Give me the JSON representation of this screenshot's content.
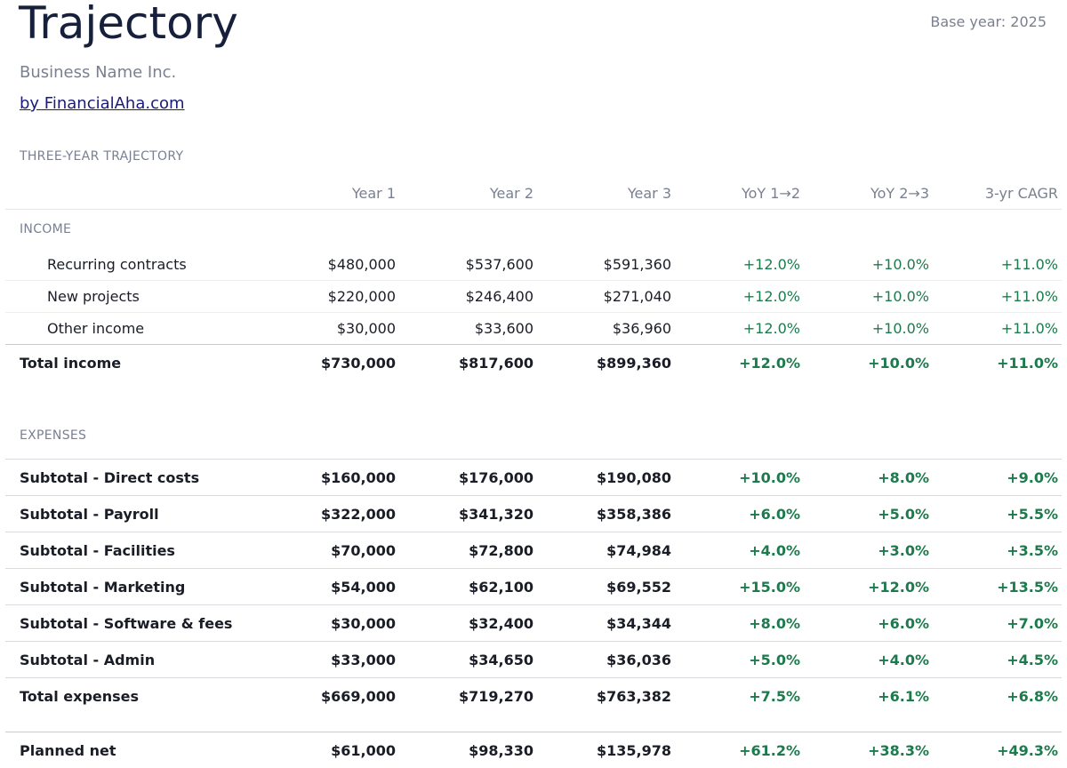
{
  "header": {
    "title": "Trajectory",
    "base_year": "Base year: 2025",
    "business": "Business Name Inc.",
    "by_link": "by FinancialAha.com"
  },
  "section_caption": "THREE-YEAR TRAJECTORY",
  "columns": [
    "",
    "Year 1",
    "Year 2",
    "Year 3",
    "YoY 1→2",
    "YoY 2→3",
    "3-yr CAGR"
  ],
  "income": {
    "group_label": "INCOME",
    "rows": [
      {
        "label": "Recurring contracts",
        "y1": "$480,000",
        "y2": "$537,600",
        "y3": "$591,360",
        "yoy12": "+12.0%",
        "yoy23": "+10.0%",
        "cagr": "+11.0%"
      },
      {
        "label": "New projects",
        "y1": "$220,000",
        "y2": "$246,400",
        "y3": "$271,040",
        "yoy12": "+12.0%",
        "yoy23": "+10.0%",
        "cagr": "+11.0%"
      },
      {
        "label": "Other income",
        "y1": "$30,000",
        "y2": "$33,600",
        "y3": "$36,960",
        "yoy12": "+12.0%",
        "yoy23": "+10.0%",
        "cagr": "+11.0%"
      }
    ],
    "total": {
      "label": "Total income",
      "y1": "$730,000",
      "y2": "$817,600",
      "y3": "$899,360",
      "yoy12": "+12.0%",
      "yoy23": "+10.0%",
      "cagr": "+11.0%"
    }
  },
  "expenses": {
    "group_label": "EXPENSES",
    "rows": [
      {
        "label": "Subtotal - Direct costs",
        "y1": "$160,000",
        "y2": "$176,000",
        "y3": "$190,080",
        "yoy12": "+10.0%",
        "yoy23": "+8.0%",
        "cagr": "+9.0%"
      },
      {
        "label": "Subtotal - Payroll",
        "y1": "$322,000",
        "y2": "$341,320",
        "y3": "$358,386",
        "yoy12": "+6.0%",
        "yoy23": "+5.0%",
        "cagr": "+5.5%"
      },
      {
        "label": "Subtotal - Facilities",
        "y1": "$70,000",
        "y2": "$72,800",
        "y3": "$74,984",
        "yoy12": "+4.0%",
        "yoy23": "+3.0%",
        "cagr": "+3.5%"
      },
      {
        "label": "Subtotal - Marketing",
        "y1": "$54,000",
        "y2": "$62,100",
        "y3": "$69,552",
        "yoy12": "+15.0%",
        "yoy23": "+12.0%",
        "cagr": "+13.5%"
      },
      {
        "label": "Subtotal - Software & fees",
        "y1": "$30,000",
        "y2": "$32,400",
        "y3": "$34,344",
        "yoy12": "+8.0%",
        "yoy23": "+6.0%",
        "cagr": "+7.0%"
      },
      {
        "label": "Subtotal - Admin",
        "y1": "$33,000",
        "y2": "$34,650",
        "y3": "$36,036",
        "yoy12": "+5.0%",
        "yoy23": "+4.0%",
        "cagr": "+4.5%"
      }
    ],
    "total": {
      "label": "Total expenses",
      "y1": "$669,000",
      "y2": "$719,270",
      "y3": "$763,382",
      "yoy12": "+7.5%",
      "yoy23": "+6.1%",
      "cagr": "+6.8%"
    }
  },
  "net": {
    "label": "Planned net",
    "y1": "$61,000",
    "y2": "$98,330",
    "y3": "$135,978",
    "yoy12": "+61.2%",
    "yoy23": "+38.3%",
    "cagr": "+49.3%"
  }
}
